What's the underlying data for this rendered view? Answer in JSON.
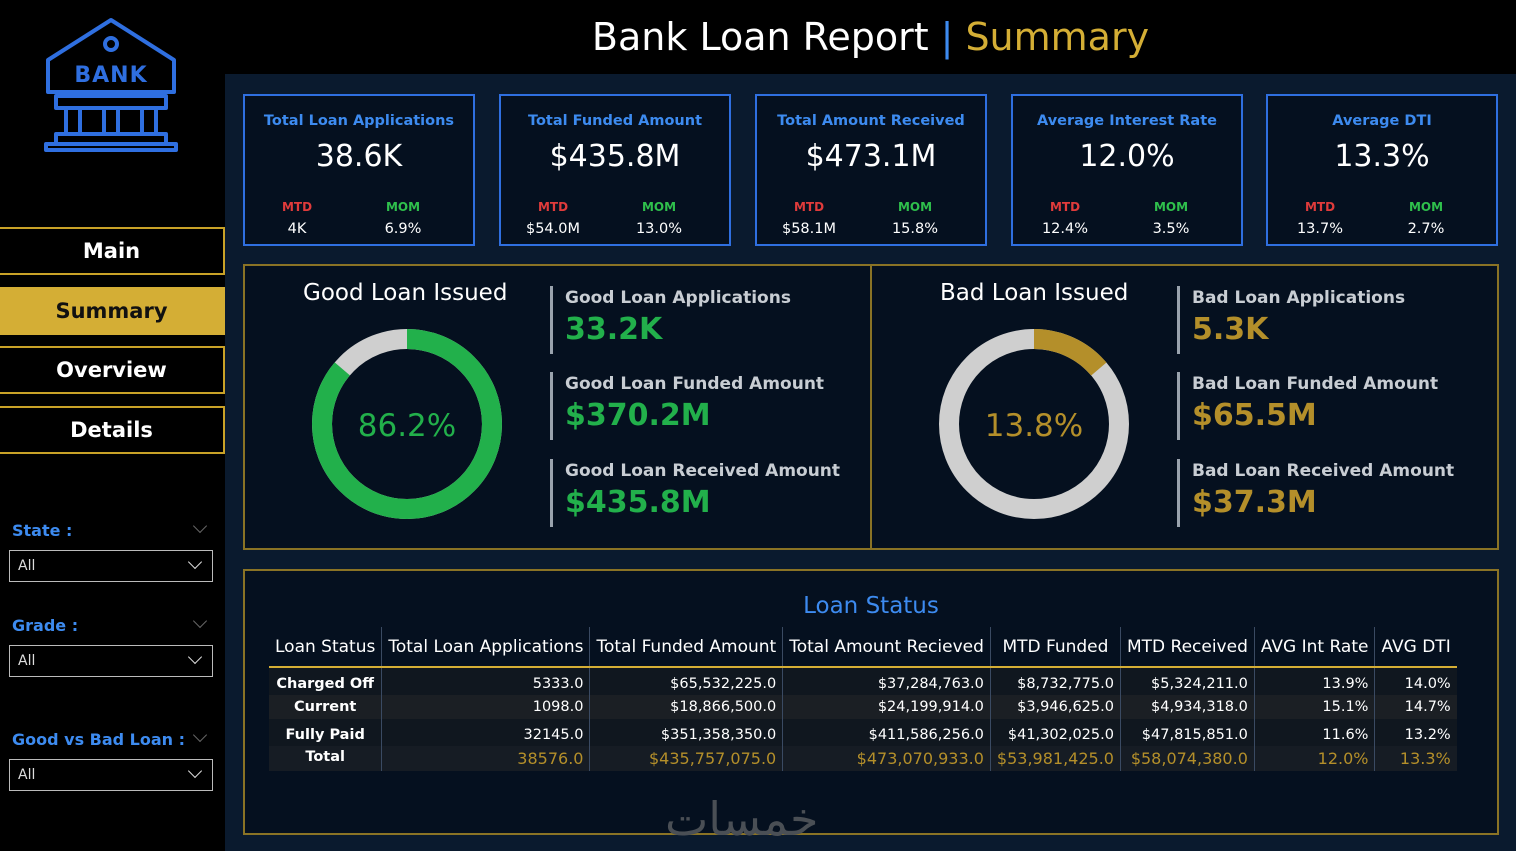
{
  "header": {
    "title": "Bank Loan Report",
    "separator": "|",
    "subtitle": "Summary"
  },
  "logo": {
    "text": "BANK",
    "color": "#2f6fe0"
  },
  "nav": [
    {
      "label": "Main",
      "active": false
    },
    {
      "label": "Summary",
      "active": true
    },
    {
      "label": "Overview",
      "active": false
    },
    {
      "label": "Details",
      "active": false
    }
  ],
  "filters": [
    {
      "label": "State :",
      "value": "All"
    },
    {
      "label": "Grade :",
      "value": "All"
    },
    {
      "label": "Good vs Bad Loan :",
      "value": "All"
    }
  ],
  "kpis": [
    {
      "title": "Total Loan Applications",
      "value": "38.6K",
      "mtd_label": "MTD",
      "mtd": "4K",
      "mom_label": "MOM",
      "mom": "6.9%"
    },
    {
      "title": "Total Funded Amount",
      "value": "$435.8M",
      "mtd_label": "MTD",
      "mtd": "$54.0M",
      "mom_label": "MOM",
      "mom": "13.0%"
    },
    {
      "title": "Total Amount Received",
      "value": "$473.1M",
      "mtd_label": "MTD",
      "mtd": "$58.1M",
      "mom_label": "MOM",
      "mom": "15.8%"
    },
    {
      "title": "Average Interest Rate",
      "value": "12.0%",
      "mtd_label": "MTD",
      "mtd": "12.4%",
      "mom_label": "MOM",
      "mom": "3.5%"
    },
    {
      "title": "Average DTI",
      "value": "13.3%",
      "mtd_label": "MTD",
      "mtd": "13.7%",
      "mom_label": "MOM",
      "mom": "2.7%"
    }
  ],
  "good_loan": {
    "title": "Good Loan Issued",
    "percent_label": "86.2%",
    "percent": 0.862,
    "color": "#22b04b",
    "metrics": [
      {
        "label": "Good Loan Applications",
        "value": "33.2K"
      },
      {
        "label": "Good Loan Funded Amount",
        "value": "$370.2M"
      },
      {
        "label": "Good Loan Received Amount",
        "value": "$435.8M"
      }
    ]
  },
  "bad_loan": {
    "title": "Bad Loan Issued",
    "percent_label": "13.8%",
    "percent": 0.138,
    "color": "#b48f2a",
    "metrics": [
      {
        "label": "Bad Loan Applications",
        "value": "5.3K"
      },
      {
        "label": "Bad Loan Funded Amount",
        "value": "$65.5M"
      },
      {
        "label": "Bad Loan Received Amount",
        "value": "$37.3M"
      }
    ]
  },
  "loan_status": {
    "title": "Loan Status",
    "columns": [
      "Loan Status",
      "Total Loan Applications",
      "Total Funded Amount",
      "Total Amount Recieved",
      "MTD Funded",
      "MTD Received",
      "AVG Int Rate",
      "AVG DTI"
    ],
    "rows": [
      [
        "Charged Off",
        "5333.0",
        "$65,532,225.0",
        "$37,284,763.0",
        "$8,732,775.0",
        "$5,324,211.0",
        "13.9%",
        "14.0%"
      ],
      [
        "Current",
        "1098.0",
        "$18,866,500.0",
        "$24,199,914.0",
        "$3,946,625.0",
        "$4,934,318.0",
        "15.1%",
        "14.7%"
      ],
      [
        "Fully Paid",
        "32145.0",
        "$351,358,350.0",
        "$411,586,256.0",
        "$41,302,025.0",
        "$47,815,851.0",
        "11.6%",
        "13.2%"
      ]
    ],
    "total": [
      "Total",
      "38576.0",
      "$435,757,075.0",
      "$473,070,933.0",
      "$53,981,425.0",
      "$58,074,380.0",
      "12.0%",
      "13.3%"
    ]
  },
  "watermark": "خمسات",
  "colors": {
    "accent_blue": "#2f6fe0",
    "gold": "#d4ae35",
    "green": "#22b04b",
    "red": "#e03b3b"
  }
}
